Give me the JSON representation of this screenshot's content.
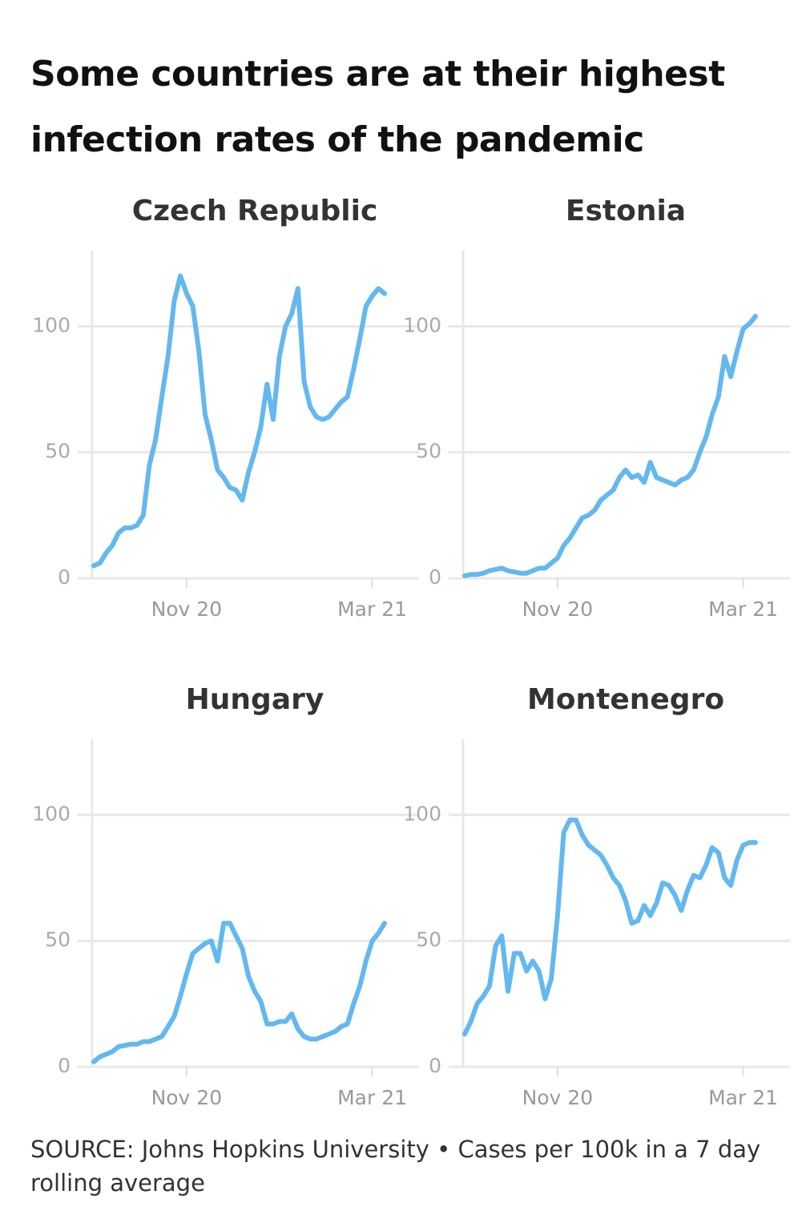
{
  "title": "Some countries are at their highest infection rates of the pandemic",
  "source": "SOURCE: Johns Hopkins University • Cases per 100k in a 7 day rolling average",
  "chart_data": [
    {
      "type": "line",
      "title": "Czech Republic",
      "color": "#63b8f0",
      "ylim": [
        0,
        130
      ],
      "yticks": [
        0,
        50,
        100
      ],
      "grid": true,
      "categories": [
        null,
        null,
        null,
        null,
        null,
        null,
        null,
        null,
        null,
        null,
        null,
        null,
        null,
        null,
        null,
        "Nov 20",
        null,
        null,
        null,
        null,
        null,
        null,
        null,
        null,
        null,
        null,
        null,
        null,
        null,
        null,
        null,
        null,
        null,
        null,
        null,
        null,
        null,
        null,
        null,
        null,
        null,
        null,
        null,
        null,
        null,
        "Mar 21",
        null,
        null
      ],
      "values": [
        5,
        6,
        10,
        13,
        18,
        20,
        20,
        21,
        25,
        45,
        55,
        72,
        88,
        110,
        120,
        113,
        108,
        90,
        65,
        55,
        43,
        40,
        36,
        35,
        31,
        42,
        50,
        60,
        77,
        63,
        88,
        100,
        105,
        115,
        78,
        68,
        64,
        63,
        64,
        67,
        70,
        72,
        83,
        95,
        108,
        112,
        115,
        113
      ]
    },
    {
      "type": "line",
      "title": "Estonia",
      "color": "#63b8f0",
      "ylim": [
        0,
        130
      ],
      "yticks": [
        0,
        50,
        100
      ],
      "grid": true,
      "categories": [
        null,
        null,
        null,
        null,
        null,
        null,
        null,
        null,
        null,
        null,
        null,
        null,
        null,
        null,
        null,
        "Nov 20",
        null,
        null,
        null,
        null,
        null,
        null,
        null,
        null,
        null,
        null,
        null,
        null,
        null,
        null,
        null,
        null,
        null,
        null,
        null,
        null,
        null,
        null,
        null,
        null,
        null,
        null,
        null,
        null,
        null,
        "Mar 21",
        null,
        null
      ],
      "values": [
        1,
        1.5,
        1.5,
        2,
        3,
        3.5,
        4,
        3,
        2.5,
        2,
        2,
        3,
        4,
        4,
        6,
        8,
        13,
        16,
        20,
        24,
        25,
        27,
        31,
        33,
        35,
        40,
        43,
        40,
        41,
        38,
        46,
        40,
        39,
        38,
        37,
        39,
        40,
        43,
        50,
        56,
        65,
        72,
        88,
        80,
        90,
        99,
        101,
        104
      ]
    },
    {
      "type": "line",
      "title": "Hungary",
      "color": "#63b8f0",
      "ylim": [
        0,
        130
      ],
      "yticks": [
        0,
        50,
        100
      ],
      "grid": true,
      "categories": [
        null,
        null,
        null,
        null,
        null,
        null,
        null,
        null,
        null,
        null,
        null,
        null,
        null,
        null,
        null,
        "Nov 20",
        null,
        null,
        null,
        null,
        null,
        null,
        null,
        null,
        null,
        null,
        null,
        null,
        null,
        null,
        null,
        null,
        null,
        null,
        null,
        null,
        null,
        null,
        null,
        null,
        null,
        null,
        null,
        null,
        null,
        "Mar 21",
        null,
        null
      ],
      "values": [
        2,
        4,
        5,
        6,
        8,
        8.5,
        9,
        9,
        10,
        10,
        11,
        12,
        16,
        20,
        28,
        37,
        45,
        47,
        49,
        50,
        42,
        57,
        57,
        52,
        47,
        36,
        30,
        26,
        17,
        17,
        18,
        18,
        21,
        15,
        12,
        11,
        11,
        12,
        13,
        14,
        16,
        17,
        25,
        32,
        42,
        50,
        53,
        57
      ]
    },
    {
      "type": "line",
      "title": "Montenegro",
      "color": "#63b8f0",
      "ylim": [
        0,
        130
      ],
      "yticks": [
        0,
        50,
        100
      ],
      "grid": true,
      "categories": [
        null,
        null,
        null,
        null,
        null,
        null,
        null,
        null,
        null,
        null,
        null,
        null,
        null,
        null,
        null,
        "Nov 20",
        null,
        null,
        null,
        null,
        null,
        null,
        null,
        null,
        null,
        null,
        null,
        null,
        null,
        null,
        null,
        null,
        null,
        null,
        null,
        null,
        null,
        null,
        null,
        null,
        null,
        null,
        null,
        null,
        null,
        "Mar 21",
        null,
        null
      ],
      "values": [
        13,
        18,
        25,
        28,
        32,
        48,
        52,
        30,
        45,
        45,
        38,
        42,
        38,
        27,
        35,
        60,
        93,
        98,
        98,
        92,
        88,
        86,
        84,
        80,
        75,
        72,
        66,
        57,
        58,
        64,
        60,
        65,
        73,
        72,
        68,
        62,
        70,
        76,
        75,
        80,
        87,
        85,
        75,
        72,
        82,
        88,
        89,
        89
      ]
    }
  ]
}
